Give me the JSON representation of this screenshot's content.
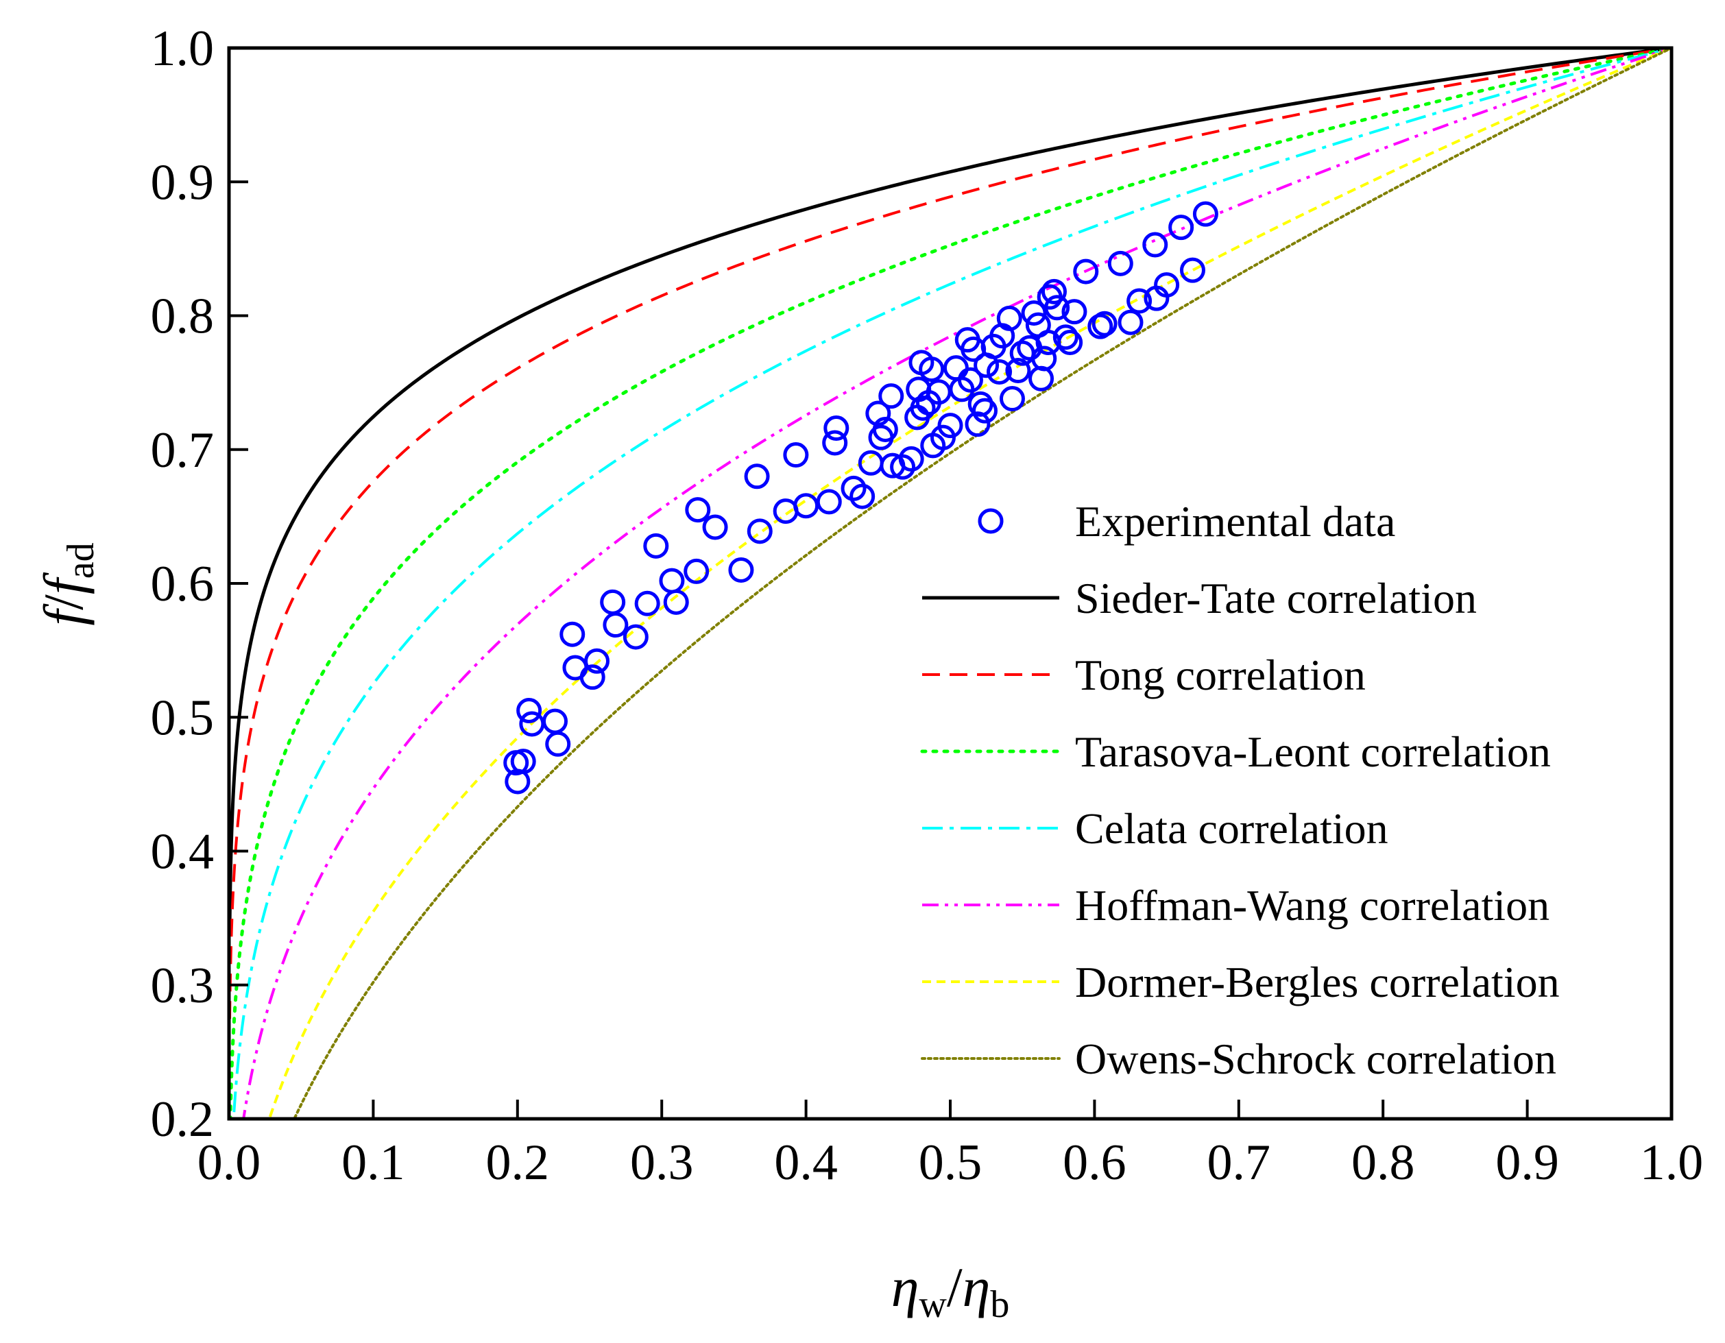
{
  "chart_data": {
    "type": "scatter",
    "title": "",
    "xlabel": {
      "symbol": "η",
      "sub": "w",
      "separator": "/",
      "symbol2": "η",
      "sub2": "b"
    },
    "ylabel": {
      "part1": "f",
      "separator": "/",
      "part2": "f",
      "sub": "ad"
    },
    "xlim": [
      0.0,
      1.0
    ],
    "ylim": [
      0.2,
      1.0
    ],
    "x_ticks": [
      "0.0",
      "0.1",
      "0.2",
      "0.3",
      "0.4",
      "0.5",
      "0.6",
      "0.7",
      "0.8",
      "0.9",
      "1.0"
    ],
    "y_ticks": [
      "0.2",
      "0.3",
      "0.4",
      "0.5",
      "0.6",
      "0.7",
      "0.8",
      "0.9",
      "1.0"
    ],
    "grid": false,
    "legend_position": "lower-right",
    "series": [
      {
        "name": "Experimental data",
        "kind": "scatter",
        "color": "#0000ff",
        "points": [
          [
            0.199,
            0.466
          ],
          [
            0.204,
            0.467
          ],
          [
            0.2,
            0.452
          ],
          [
            0.208,
            0.505
          ],
          [
            0.21,
            0.495
          ],
          [
            0.226,
            0.497
          ],
          [
            0.228,
            0.48
          ],
          [
            0.238,
            0.562
          ],
          [
            0.24,
            0.537
          ],
          [
            0.252,
            0.53
          ],
          [
            0.255,
            0.542
          ],
          [
            0.266,
            0.586
          ],
          [
            0.268,
            0.569
          ],
          [
            0.282,
            0.56
          ],
          [
            0.29,
            0.585
          ],
          [
            0.296,
            0.628
          ],
          [
            0.307,
            0.602
          ],
          [
            0.31,
            0.586
          ],
          [
            0.324,
            0.609
          ],
          [
            0.325,
            0.655
          ],
          [
            0.337,
            0.642
          ],
          [
            0.355,
            0.61
          ],
          [
            0.366,
            0.68
          ],
          [
            0.368,
            0.639
          ],
          [
            0.386,
            0.654
          ],
          [
            0.393,
            0.696
          ],
          [
            0.4,
            0.658
          ],
          [
            0.416,
            0.661
          ],
          [
            0.42,
            0.705
          ],
          [
            0.421,
            0.716
          ],
          [
            0.433,
            0.671
          ],
          [
            0.439,
            0.665
          ],
          [
            0.445,
            0.69
          ],
          [
            0.45,
            0.727
          ],
          [
            0.452,
            0.709
          ],
          [
            0.455,
            0.715
          ],
          [
            0.459,
            0.74
          ],
          [
            0.46,
            0.688
          ],
          [
            0.467,
            0.687
          ],
          [
            0.473,
            0.693
          ],
          [
            0.477,
            0.724
          ],
          [
            0.478,
            0.745
          ],
          [
            0.48,
            0.765
          ],
          [
            0.481,
            0.731
          ],
          [
            0.485,
            0.735
          ],
          [
            0.487,
            0.76
          ],
          [
            0.488,
            0.703
          ],
          [
            0.492,
            0.743
          ],
          [
            0.495,
            0.709
          ],
          [
            0.5,
            0.718
          ],
          [
            0.504,
            0.761
          ],
          [
            0.508,
            0.745
          ],
          [
            0.512,
            0.782
          ],
          [
            0.514,
            0.752
          ],
          [
            0.516,
            0.775
          ],
          [
            0.519,
            0.719
          ],
          [
            0.521,
            0.734
          ],
          [
            0.524,
            0.729
          ],
          [
            0.525,
            0.763
          ],
          [
            0.53,
            0.777
          ],
          [
            0.534,
            0.758
          ],
          [
            0.536,
            0.785
          ],
          [
            0.541,
            0.798
          ],
          [
            0.543,
            0.738
          ],
          [
            0.547,
            0.759
          ],
          [
            0.55,
            0.772
          ],
          [
            0.555,
            0.776
          ],
          [
            0.558,
            0.802
          ],
          [
            0.561,
            0.793
          ],
          [
            0.563,
            0.753
          ],
          [
            0.565,
            0.768
          ],
          [
            0.568,
            0.78
          ],
          [
            0.569,
            0.814
          ],
          [
            0.572,
            0.818
          ],
          [
            0.574,
            0.806
          ],
          [
            0.58,
            0.784
          ],
          [
            0.583,
            0.78
          ],
          [
            0.586,
            0.803
          ],
          [
            0.594,
            0.833
          ],
          [
            0.604,
            0.792
          ],
          [
            0.607,
            0.794
          ],
          [
            0.618,
            0.839
          ],
          [
            0.625,
            0.795
          ],
          [
            0.631,
            0.811
          ],
          [
            0.642,
            0.853
          ],
          [
            0.643,
            0.813
          ],
          [
            0.65,
            0.823
          ],
          [
            0.66,
            0.866
          ],
          [
            0.668,
            0.834
          ],
          [
            0.677,
            0.876
          ]
        ]
      },
      {
        "name": "Sieder-Tate correlation",
        "kind": "line",
        "color": "#000000",
        "dash": "solid",
        "exponent": 0.14,
        "line_width": 5
      },
      {
        "name": "Tong correlation",
        "kind": "line",
        "color": "#ff0000",
        "dash": "dashed",
        "exponent": 0.17,
        "line_width": 4
      },
      {
        "name": "Tarasova-Leont correlation",
        "kind": "line",
        "color": "#00ff00",
        "dash": "dotted",
        "exponent": 0.23,
        "line_width": 5
      },
      {
        "name": "Celata correlation",
        "kind": "line",
        "color": "#00ffff",
        "dash": "dash-dot",
        "exponent": 0.28,
        "line_width": 4
      },
      {
        "name": "Hoffman-Wang correlation",
        "kind": "line",
        "color": "#ff00ff",
        "dash": "dash-dot-dot",
        "exponent": 0.35,
        "line_width": 4
      },
      {
        "name": "Dormer-Bergles correlation",
        "kind": "line",
        "color": "#ffff00",
        "dash": "short-dash",
        "exponent": 0.45,
        "line_width": 4
      },
      {
        "name": "Owens-Schrock correlation",
        "kind": "line",
        "color": "#808000",
        "dash": "fine-dotted",
        "exponent": 0.52,
        "line_width": 4
      }
    ]
  }
}
